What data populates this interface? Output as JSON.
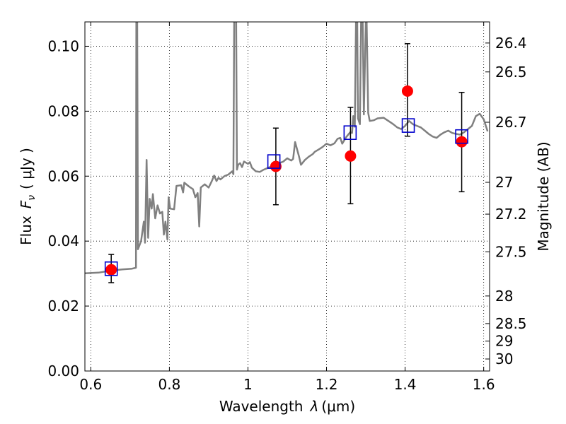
{
  "chart_data": {
    "type": "scatter",
    "xlabel_text": "Wavelength",
    "xlabel_symbol": "λ",
    "xlabel_unit": "(μm)",
    "ylabel_text": "Flux",
    "ylabel_symbol": "F",
    "ylabel_subscript": "ν",
    "ylabel_unit": "( μJy )",
    "y2label": "Magnitude (AB)",
    "xlim": [
      0.585,
      1.615
    ],
    "ylim": [
      0.0,
      0.1075
    ],
    "grid": true,
    "x_ticks": [
      0.6,
      0.8,
      1.0,
      1.2,
      1.4,
      1.6
    ],
    "x_tick_labels": [
      "0.6",
      "0.8",
      "1",
      "1.2",
      "1.4",
      "1.6"
    ],
    "y_ticks": [
      0.0,
      0.02,
      0.04,
      0.06,
      0.08,
      0.1
    ],
    "y_tick_labels": [
      "0.00",
      "0.02",
      "0.04",
      "0.06",
      "0.08",
      "0.10"
    ],
    "mag_ticks": [
      {
        "label": "26.4",
        "flux": 0.101
      },
      {
        "label": "26.5",
        "flux": 0.0921
      },
      {
        "label": "26.7",
        "flux": 0.0766
      },
      {
        "label": "27",
        "flux": 0.0581
      },
      {
        "label": "27.2",
        "flux": 0.0483
      },
      {
        "label": "27.5",
        "flux": 0.0367
      },
      {
        "label": "28",
        "flux": 0.0231
      },
      {
        "label": "28.5",
        "flux": 0.0146
      },
      {
        "label": "29",
        "flux": 0.0092
      },
      {
        "label": "30",
        "flux": 0.0037
      }
    ],
    "series": [
      {
        "type": "line",
        "color": "#808080",
        "points": [
          [
            0.585,
            0.0301
          ],
          [
            0.62,
            0.0303
          ],
          [
            0.65,
            0.0309
          ],
          [
            0.68,
            0.0313
          ],
          [
            0.705,
            0.0315
          ],
          [
            0.715,
            0.0318
          ],
          [
            0.716,
            0.108
          ],
          [
            0.718,
            0.108
          ],
          [
            0.72,
            0.0375
          ],
          [
            0.728,
            0.04
          ],
          [
            0.735,
            0.046
          ],
          [
            0.738,
            0.0395
          ],
          [
            0.742,
            0.065
          ],
          [
            0.746,
            0.041
          ],
          [
            0.75,
            0.053
          ],
          [
            0.755,
            0.05
          ],
          [
            0.758,
            0.0545
          ],
          [
            0.764,
            0.047
          ],
          [
            0.77,
            0.051
          ],
          [
            0.776,
            0.0485
          ],
          [
            0.782,
            0.049
          ],
          [
            0.786,
            0.042
          ],
          [
            0.79,
            0.046
          ],
          [
            0.795,
            0.0405
          ],
          [
            0.798,
            0.0535
          ],
          [
            0.802,
            0.05
          ],
          [
            0.812,
            0.0498
          ],
          [
            0.818,
            0.057
          ],
          [
            0.83,
            0.0572
          ],
          [
            0.835,
            0.055
          ],
          [
            0.838,
            0.058
          ],
          [
            0.85,
            0.0568
          ],
          [
            0.86,
            0.056
          ],
          [
            0.866,
            0.0535
          ],
          [
            0.872,
            0.0548
          ],
          [
            0.876,
            0.0445
          ],
          [
            0.88,
            0.0565
          ],
          [
            0.89,
            0.0575
          ],
          [
            0.9,
            0.0565
          ],
          [
            0.908,
            0.0585
          ],
          [
            0.914,
            0.0602
          ],
          [
            0.92,
            0.0585
          ],
          [
            0.925,
            0.0595
          ],
          [
            0.93,
            0.059
          ],
          [
            0.94,
            0.06
          ],
          [
            0.95,
            0.0605
          ],
          [
            0.96,
            0.0615
          ],
          [
            0.963,
            0.0606
          ],
          [
            0.965,
            0.108
          ],
          [
            0.97,
            0.108
          ],
          [
            0.972,
            0.062
          ],
          [
            0.975,
            0.0635
          ],
          [
            0.98,
            0.064
          ],
          [
            0.985,
            0.0628
          ],
          [
            0.99,
            0.0645
          ],
          [
            1.0,
            0.0638
          ],
          [
            1.005,
            0.0643
          ],
          [
            1.01,
            0.0626
          ],
          [
            1.02,
            0.0615
          ],
          [
            1.03,
            0.0613
          ],
          [
            1.04,
            0.062
          ],
          [
            1.05,
            0.0625
          ],
          [
            1.06,
            0.063
          ],
          [
            1.07,
            0.0635
          ],
          [
            1.08,
            0.064
          ],
          [
            1.09,
            0.0645
          ],
          [
            1.1,
            0.0655
          ],
          [
            1.11,
            0.0648
          ],
          [
            1.115,
            0.0653
          ],
          [
            1.12,
            0.0705
          ],
          [
            1.13,
            0.066
          ],
          [
            1.135,
            0.0635
          ],
          [
            1.145,
            0.065
          ],
          [
            1.155,
            0.066
          ],
          [
            1.165,
            0.0668
          ],
          [
            1.17,
            0.0675
          ],
          [
            1.18,
            0.0682
          ],
          [
            1.19,
            0.069
          ],
          [
            1.2,
            0.07
          ],
          [
            1.21,
            0.0695
          ],
          [
            1.22,
            0.0701
          ],
          [
            1.228,
            0.0715
          ],
          [
            1.235,
            0.0718
          ],
          [
            1.24,
            0.07
          ],
          [
            1.25,
            0.072
          ],
          [
            1.26,
            0.0735
          ],
          [
            1.265,
            0.0733
          ],
          [
            1.268,
            0.0785
          ],
          [
            1.272,
            0.0752
          ],
          [
            1.275,
            0.108
          ],
          [
            1.278,
            0.108
          ],
          [
            1.28,
            0.0778
          ],
          [
            1.285,
            0.076
          ],
          [
            1.288,
            0.108
          ],
          [
            1.292,
            0.108
          ],
          [
            1.295,
            0.079
          ],
          [
            1.3,
            0.108
          ],
          [
            1.302,
            0.108
          ],
          [
            1.306,
            0.0795
          ],
          [
            1.31,
            0.077
          ],
          [
            1.32,
            0.0772
          ],
          [
            1.33,
            0.0778
          ],
          [
            1.345,
            0.078
          ],
          [
            1.36,
            0.0768
          ],
          [
            1.37,
            0.076
          ],
          [
            1.38,
            0.075
          ],
          [
            1.39,
            0.0745
          ],
          [
            1.4,
            0.0755
          ],
          [
            1.41,
            0.077
          ],
          [
            1.42,
            0.076
          ],
          [
            1.43,
            0.0755
          ],
          [
            1.44,
            0.075
          ],
          [
            1.45,
            0.074
          ],
          [
            1.46,
            0.073
          ],
          [
            1.47,
            0.0722
          ],
          [
            1.48,
            0.0718
          ],
          [
            1.49,
            0.0728
          ],
          [
            1.5,
            0.0735
          ],
          [
            1.51,
            0.074
          ],
          [
            1.52,
            0.0733
          ],
          [
            1.53,
            0.073
          ],
          [
            1.54,
            0.0728
          ],
          [
            1.55,
            0.0735
          ],
          [
            1.56,
            0.0745
          ],
          [
            1.57,
            0.0755
          ],
          [
            1.58,
            0.0785
          ],
          [
            1.59,
            0.0792
          ],
          [
            1.6,
            0.0775
          ],
          [
            1.61,
            0.0738
          ]
        ]
      },
      {
        "type": "scatter",
        "marker": "square",
        "color": "#0000cc",
        "points": [
          [
            0.652,
            0.0315
          ],
          [
            1.066,
            0.0645
          ],
          [
            1.26,
            0.0734
          ],
          [
            1.408,
            0.0756
          ],
          [
            1.544,
            0.0722
          ]
        ]
      },
      {
        "type": "scatter",
        "marker": "circle",
        "color": "#ff0000",
        "errors": true,
        "points": [
          {
            "x": 0.652,
            "y": 0.0312,
            "ylo": 0.0272,
            "yhi": 0.0359
          },
          {
            "x": 1.071,
            "y": 0.063,
            "ylo": 0.0512,
            "yhi": 0.0748
          },
          {
            "x": 1.261,
            "y": 0.0662,
            "ylo": 0.0515,
            "yhi": 0.0812
          },
          {
            "x": 1.406,
            "y": 0.0862,
            "ylo": 0.0723,
            "yhi": 0.1008
          },
          {
            "x": 1.544,
            "y": 0.0706,
            "ylo": 0.0552,
            "yhi": 0.0858
          }
        ]
      }
    ]
  }
}
